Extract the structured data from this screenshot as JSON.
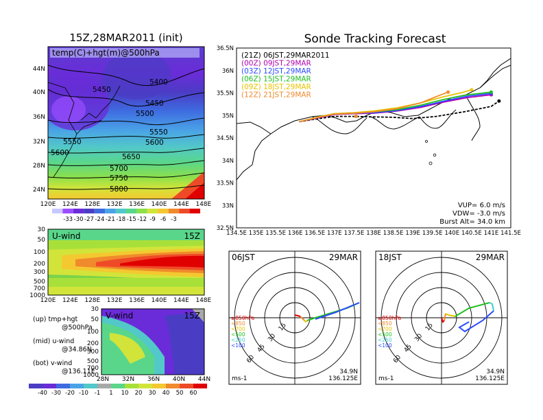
{
  "upper_panel": {
    "title": "15Z,28MAR2011 (init)",
    "label": "temp(C)+hgt(m)@500hPa",
    "lat_ticks": [
      "44N",
      "40N",
      "36N",
      "32N",
      "28N",
      "24N"
    ],
    "lon_ticks": [
      "120E",
      "124E",
      "128E",
      "132E",
      "136E",
      "140E",
      "144E",
      "148E"
    ],
    "contour_labels": [
      "5400",
      "5450",
      "5450",
      "5500",
      "5550",
      "5550",
      "5600",
      "5600",
      "5650",
      "5700",
      "5750",
      "5800"
    ]
  },
  "temp_colorbar": {
    "labels": [
      "-33",
      "-30",
      "-27",
      "-24",
      "-21",
      "-18",
      "-15",
      "-12",
      "-9",
      "-6",
      "-3"
    ],
    "colors": [
      "#c8c8ff",
      "#9b4dff",
      "#6a2cd8",
      "#4b3cc4",
      "#3e6be0",
      "#4aa3e6",
      "#52c8c8",
      "#5ad68a",
      "#8ee04a",
      "#d2e43a",
      "#f4c830",
      "#f08a2c",
      "#ef4a28",
      "#e00000"
    ]
  },
  "u_panel": {
    "label": "U-wind",
    "time": "15Z",
    "p_ticks": [
      "30",
      "50",
      "100",
      "200",
      "300",
      "500",
      "700",
      "1000"
    ],
    "lon_ticks": [
      "120E",
      "124E",
      "128E",
      "132E",
      "136E",
      "140E",
      "144E",
      "148E"
    ]
  },
  "v_panel": {
    "label": "V-wind",
    "time": "15Z",
    "p_ticks": [
      "30",
      "50",
      "100",
      "200",
      "300",
      "500",
      "700",
      "1000"
    ],
    "lat_ticks": [
      "28N",
      "32N",
      "36N",
      "40N",
      "44N"
    ]
  },
  "wind_colorbar": {
    "labels": [
      "-40",
      "-30",
      "-20",
      "-10",
      "-1",
      "1",
      "10",
      "20",
      "30",
      "40",
      "50",
      "60"
    ]
  },
  "legend_notes": [
    {
      "line1": "(up) tmp+hgt",
      "line2": "@500hPa"
    },
    {
      "line1": "(mid) u-wind",
      "line2": "@34.86N"
    },
    {
      "line1": "(bot) v-wind",
      "line2": "@136.11E"
    }
  ],
  "tracking": {
    "title": "Sonde Tracking Forecast",
    "lat_ticks": [
      "36.5N",
      "36N",
      "35.5N",
      "35N",
      "34.5N",
      "34N",
      "33.5N",
      "33N",
      "32.5N"
    ],
    "lon_ticks": [
      "134.5E",
      "135E",
      "135.5E",
      "136E",
      "136.5E",
      "137E",
      "137.5E",
      "138E",
      "138.5E",
      "139E",
      "139.5E",
      "140E",
      "140.5E",
      "141E",
      "141.5E"
    ],
    "launches": [
      {
        "label": "(21Z)  06JST,29MAR2011",
        "color": "#000000"
      },
      {
        "label": "(00Z)  09JST,29MAR",
        "color": "#b000b0"
      },
      {
        "label": "(03Z)  12JST,29MAR",
        "color": "#2a4bff"
      },
      {
        "label": "(06Z)  15JST,29MAR",
        "color": "#1fbf1f"
      },
      {
        "label": "(09Z)  18JST,29MAR",
        "color": "#e8c400"
      },
      {
        "label": "(12Z)  21JST,29MAR",
        "color": "#f08a2c"
      }
    ],
    "vup": "VUP=  6.0  m/s",
    "vdw": "VDW= -3.0  m/s",
    "burst": "Burst Alt= 34.0  km"
  },
  "hodo_06": {
    "time": "06JST",
    "date": "29MAR",
    "rings": [
      "15",
      "30",
      "45",
      "60"
    ],
    "levels": [
      {
        "label": "≥850hPa",
        "color": "#e00000"
      },
      {
        "label": "<850",
        "color": "#f08a2c"
      },
      {
        "label": "<700",
        "color": "#e8c400"
      },
      {
        "label": "<500",
        "color": "#1fbf1f"
      },
      {
        "label": "<250",
        "color": "#3ecfcf"
      },
      {
        "label": "<100",
        "color": "#2a4bff"
      }
    ],
    "unit": "ms-1",
    "lat": "34.9N",
    "lon": "136.125E"
  },
  "hodo_18": {
    "time": "18JST",
    "date": "29MAR",
    "rings": [
      "15",
      "30",
      "45",
      "60"
    ],
    "levels": [
      {
        "label": "≥850hPa",
        "color": "#e00000"
      },
      {
        "label": "<850",
        "color": "#f08a2c"
      },
      {
        "label": "<700",
        "color": "#e8c400"
      },
      {
        "label": "<500",
        "color": "#1fbf1f"
      },
      {
        "label": "<250",
        "color": "#3ecfcf"
      },
      {
        "label": "<100",
        "color": "#2a4bff"
      }
    ],
    "unit": "ms-1",
    "lat": "34.9N",
    "lon": "136.125E"
  },
  "chart_data": [
    {
      "type": "line",
      "title": "Sonde Tracking Forecast",
      "xlim": [
        134.5,
        141.5
      ],
      "ylim": [
        32.5,
        36.5
      ],
      "series": [
        {
          "name": "(21Z)  06JST,29MAR2011",
          "x": [
            136.1,
            136.6,
            137.0,
            137.5,
            137.9,
            138.5,
            139.0,
            139.6,
            140.3,
            141.0,
            141.2
          ],
          "y": [
            34.86,
            34.93,
            34.98,
            34.98,
            34.97,
            34.96,
            34.93,
            34.98,
            35.08,
            35.2,
            35.32
          ]
        },
        {
          "name": "(00Z)  09JST,29MAR",
          "x": [
            136.1,
            136.6,
            137.0,
            137.5,
            138.0,
            138.6,
            139.2,
            139.8,
            140.4,
            141.0
          ],
          "y": [
            34.86,
            34.95,
            35.02,
            35.04,
            35.05,
            35.1,
            35.18,
            35.3,
            35.4,
            35.46
          ]
        },
        {
          "name": "(03Z)  12JST,29MAR",
          "x": [
            136.1,
            136.6,
            137.0,
            137.5,
            138.0,
            138.6,
            139.2,
            139.8,
            140.4,
            141.0
          ],
          "y": [
            34.86,
            34.96,
            35.03,
            35.05,
            35.06,
            35.11,
            35.2,
            35.32,
            35.43,
            35.49
          ]
        },
        {
          "name": "(06Z)  15JST,29MAR",
          "x": [
            136.1,
            136.6,
            137.0,
            137.5,
            138.0,
            138.6,
            139.2,
            139.8,
            140.4,
            141.0
          ],
          "y": [
            34.86,
            34.97,
            35.04,
            35.06,
            35.08,
            35.13,
            35.23,
            35.36,
            35.46,
            35.52
          ]
        },
        {
          "name": "(09Z)  18JST,29MAR",
          "x": [
            136.1,
            136.6,
            137.0,
            137.5,
            138.0,
            138.6,
            139.2,
            139.8,
            140.3,
            140.5
          ],
          "y": [
            34.86,
            34.97,
            35.04,
            35.06,
            35.1,
            35.17,
            35.28,
            35.42,
            35.52,
            35.57
          ]
        },
        {
          "name": "(12Z)  21JST,29MAR",
          "x": [
            136.1,
            136.6,
            137.0,
            137.5,
            138.0,
            138.6,
            139.2,
            139.6,
            139.9
          ],
          "y": [
            34.86,
            34.96,
            35.03,
            35.05,
            35.08,
            35.15,
            35.28,
            35.42,
            35.52
          ]
        }
      ]
    }
  ]
}
